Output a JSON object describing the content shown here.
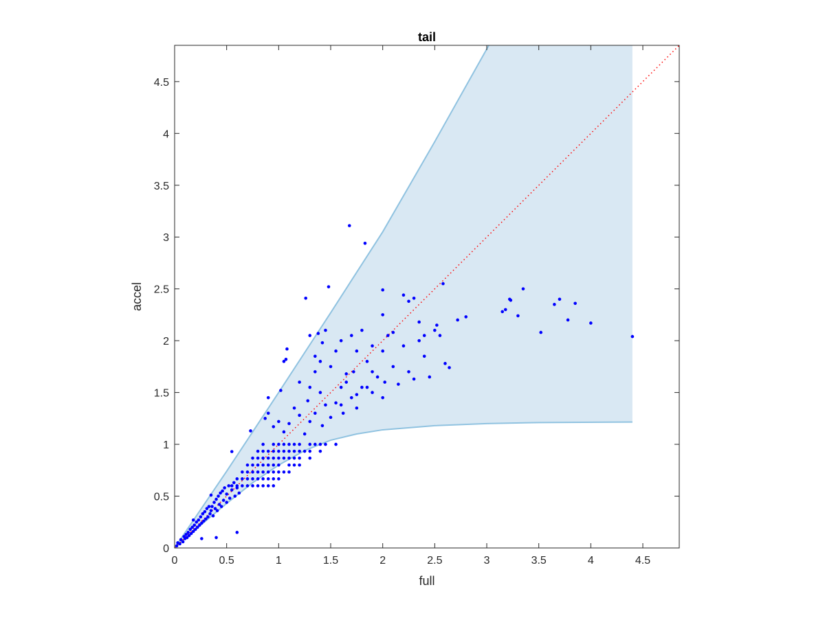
{
  "chart_data": {
    "type": "scatter",
    "title": "tail",
    "xlabel": "full",
    "ylabel": "accel",
    "xlim": [
      0,
      4.85
    ],
    "ylim": [
      0,
      4.85
    ],
    "xticks": [
      "0",
      "0.5",
      "1",
      "1.5",
      "2",
      "2.5",
      "3",
      "3.5",
      "4",
      "4.5"
    ],
    "yticks": [
      "0",
      "0.5",
      "1",
      "1.5",
      "2",
      "2.5",
      "3",
      "3.5",
      "4",
      "4.5"
    ],
    "grid": false,
    "colors": {
      "points": "#0000ff",
      "band_fill": "#d9e8f3",
      "band_edge": "#8fc2e0",
      "reference": "#ff0000"
    },
    "reference_line": {
      "style": "dotted",
      "x": [
        0,
        4.85
      ],
      "y": [
        0,
        4.85
      ]
    },
    "band": {
      "upper": [
        [
          0,
          0
        ],
        [
          0.5,
          0.74
        ],
        [
          1,
          1.5
        ],
        [
          1.5,
          2.27
        ],
        [
          2,
          3.05
        ],
        [
          2.5,
          3.92
        ],
        [
          3.02,
          4.85
        ]
      ],
      "lower": [
        [
          0,
          0
        ],
        [
          0.25,
          0.22
        ],
        [
          0.5,
          0.43
        ],
        [
          0.75,
          0.63
        ],
        [
          1,
          0.8
        ],
        [
          1.25,
          0.94
        ],
        [
          1.5,
          1.04
        ],
        [
          1.75,
          1.1
        ],
        [
          2,
          1.14
        ],
        [
          2.5,
          1.18
        ],
        [
          3,
          1.2
        ],
        [
          3.5,
          1.21
        ],
        [
          4.4,
          1.215
        ]
      ],
      "x_end": 4.4
    },
    "points": [
      [
        0.02,
        0.02
      ],
      [
        0.03,
        0.05
      ],
      [
        0.05,
        0.04
      ],
      [
        0.06,
        0.08
      ],
      [
        0.08,
        0.06
      ],
      [
        0.09,
        0.11
      ],
      [
        0.1,
        0.09
      ],
      [
        0.11,
        0.13
      ],
      [
        0.12,
        0.1
      ],
      [
        0.13,
        0.15
      ],
      [
        0.14,
        0.12
      ],
      [
        0.15,
        0.18
      ],
      [
        0.16,
        0.14
      ],
      [
        0.17,
        0.2
      ],
      [
        0.18,
        0.16
      ],
      [
        0.19,
        0.22
      ],
      [
        0.2,
        0.18
      ],
      [
        0.21,
        0.25
      ],
      [
        0.22,
        0.2
      ],
      [
        0.23,
        0.27
      ],
      [
        0.24,
        0.22
      ],
      [
        0.25,
        0.3
      ],
      [
        0.26,
        0.24
      ],
      [
        0.27,
        0.33
      ],
      [
        0.28,
        0.26
      ],
      [
        0.29,
        0.35
      ],
      [
        0.3,
        0.28
      ],
      [
        0.31,
        0.38
      ],
      [
        0.32,
        0.3
      ],
      [
        0.33,
        0.4
      ],
      [
        0.34,
        0.33
      ],
      [
        0.35,
        0.36
      ],
      [
        0.36,
        0.4
      ],
      [
        0.37,
        0.31
      ],
      [
        0.38,
        0.44
      ],
      [
        0.39,
        0.38
      ],
      [
        0.4,
        0.47
      ],
      [
        0.41,
        0.36
      ],
      [
        0.42,
        0.5
      ],
      [
        0.43,
        0.42
      ],
      [
        0.44,
        0.53
      ],
      [
        0.45,
        0.4
      ],
      [
        0.46,
        0.55
      ],
      [
        0.47,
        0.46
      ],
      [
        0.48,
        0.58
      ],
      [
        0.5,
        0.44
      ],
      [
        0.5,
        0.52
      ],
      [
        0.52,
        0.6
      ],
      [
        0.53,
        0.48
      ],
      [
        0.55,
        0.56
      ],
      [
        0.57,
        0.63
      ],
      [
        0.58,
        0.5
      ],
      [
        0.6,
        0.58
      ],
      [
        0.62,
        0.53
      ],
      [
        0.4,
        0.1
      ],
      [
        0.26,
        0.09
      ],
      [
        0.18,
        0.27
      ],
      [
        0.35,
        0.51
      ],
      [
        0.6,
        0.15
      ],
      [
        0.55,
        0.6
      ],
      [
        0.6,
        0.6
      ],
      [
        0.65,
        0.6
      ],
      [
        0.7,
        0.6
      ],
      [
        0.75,
        0.6
      ],
      [
        0.8,
        0.6
      ],
      [
        0.85,
        0.6
      ],
      [
        0.9,
        0.6
      ],
      [
        0.95,
        0.6
      ],
      [
        0.6,
        0.667
      ],
      [
        0.65,
        0.667
      ],
      [
        0.7,
        0.667
      ],
      [
        0.75,
        0.667
      ],
      [
        0.8,
        0.667
      ],
      [
        0.85,
        0.667
      ],
      [
        0.9,
        0.667
      ],
      [
        0.95,
        0.667
      ],
      [
        1.0,
        0.667
      ],
      [
        0.65,
        0.733
      ],
      [
        0.7,
        0.733
      ],
      [
        0.75,
        0.733
      ],
      [
        0.8,
        0.733
      ],
      [
        0.85,
        0.733
      ],
      [
        0.9,
        0.733
      ],
      [
        0.95,
        0.733
      ],
      [
        1.0,
        0.733
      ],
      [
        1.05,
        0.733
      ],
      [
        1.1,
        0.733
      ],
      [
        0.7,
        0.8
      ],
      [
        0.75,
        0.8
      ],
      [
        0.8,
        0.8
      ],
      [
        0.85,
        0.8
      ],
      [
        0.9,
        0.8
      ],
      [
        0.95,
        0.8
      ],
      [
        1.0,
        0.8
      ],
      [
        1.1,
        0.8
      ],
      [
        1.15,
        0.8
      ],
      [
        1.2,
        0.8
      ],
      [
        0.75,
        0.867
      ],
      [
        0.8,
        0.867
      ],
      [
        0.85,
        0.867
      ],
      [
        0.9,
        0.867
      ],
      [
        0.95,
        0.867
      ],
      [
        1.0,
        0.867
      ],
      [
        1.05,
        0.867
      ],
      [
        1.1,
        0.867
      ],
      [
        1.15,
        0.867
      ],
      [
        1.2,
        0.867
      ],
      [
        1.3,
        0.867
      ],
      [
        0.8,
        0.933
      ],
      [
        0.85,
        0.933
      ],
      [
        0.9,
        0.933
      ],
      [
        0.95,
        0.933
      ],
      [
        1.0,
        0.933
      ],
      [
        1.05,
        0.933
      ],
      [
        1.1,
        0.933
      ],
      [
        1.15,
        0.933
      ],
      [
        1.2,
        0.933
      ],
      [
        1.25,
        0.933
      ],
      [
        1.3,
        0.933
      ],
      [
        1.4,
        0.933
      ],
      [
        0.85,
        1.0
      ],
      [
        0.95,
        1.0
      ],
      [
        1.0,
        1.0
      ],
      [
        1.05,
        1.0
      ],
      [
        1.1,
        1.0
      ],
      [
        1.15,
        1.0
      ],
      [
        1.2,
        1.0
      ],
      [
        1.3,
        1.0
      ],
      [
        1.35,
        1.0
      ],
      [
        1.4,
        1.0
      ],
      [
        1.45,
        1.0
      ],
      [
        1.55,
        1.0
      ],
      [
        0.55,
        0.93
      ],
      [
        0.73,
        1.13
      ],
      [
        0.87,
        1.25
      ],
      [
        0.9,
        1.3
      ],
      [
        0.95,
        1.17
      ],
      [
        1.0,
        1.22
      ],
      [
        1.05,
        1.12
      ],
      [
        1.1,
        1.2
      ],
      [
        1.15,
        1.35
      ],
      [
        1.2,
        1.28
      ],
      [
        1.25,
        1.1
      ],
      [
        1.28,
        1.42
      ],
      [
        1.3,
        1.22
      ],
      [
        1.35,
        1.3
      ],
      [
        1.4,
        1.5
      ],
      [
        1.42,
        1.18
      ],
      [
        1.45,
        1.38
      ],
      [
        1.5,
        1.26
      ],
      [
        1.55,
        1.4
      ],
      [
        1.6,
        1.55
      ],
      [
        1.62,
        1.3
      ],
      [
        1.65,
        1.6
      ],
      [
        1.7,
        1.45
      ],
      [
        1.72,
        1.7
      ],
      [
        1.75,
        1.35
      ],
      [
        1.8,
        1.55
      ],
      [
        1.85,
        1.8
      ],
      [
        1.9,
        1.5
      ],
      [
        1.95,
        1.65
      ],
      [
        2.0,
        1.9
      ],
      [
        2.02,
        1.6
      ],
      [
        2.05,
        2.05
      ],
      [
        2.1,
        1.75
      ],
      [
        2.15,
        1.58
      ],
      [
        2.2,
        1.95
      ],
      [
        2.25,
        1.7
      ],
      [
        2.3,
        1.63
      ],
      [
        2.35,
        2.0
      ],
      [
        2.4,
        1.85
      ],
      [
        2.45,
        1.65
      ],
      [
        2.5,
        2.1
      ],
      [
        2.52,
        2.15
      ],
      [
        2.55,
        2.05
      ],
      [
        1.3,
        1.55
      ],
      [
        1.35,
        1.7
      ],
      [
        1.4,
        1.8
      ],
      [
        1.5,
        1.75
      ],
      [
        1.55,
        1.9
      ],
      [
        1.6,
        2.0
      ],
      [
        1.65,
        1.68
      ],
      [
        1.7,
        2.05
      ],
      [
        1.75,
        1.9
      ],
      [
        1.8,
        2.1
      ],
      [
        1.9,
        1.95
      ],
      [
        2.0,
        2.25
      ],
      [
        2.1,
        2.08
      ],
      [
        2.2,
        2.44
      ],
      [
        2.25,
        2.38
      ],
      [
        2.3,
        2.41
      ],
      [
        2.35,
        2.18
      ],
      [
        2.4,
        2.05
      ],
      [
        2.0,
        1.45
      ],
      [
        1.85,
        1.55
      ],
      [
        1.75,
        1.48
      ],
      [
        1.6,
        1.38
      ],
      [
        1.9,
        1.7
      ],
      [
        1.05,
        1.8
      ],
      [
        1.07,
        1.82
      ],
      [
        1.08,
        1.92
      ],
      [
        1.2,
        1.6
      ],
      [
        1.3,
        2.05
      ],
      [
        1.35,
        1.85
      ],
      [
        1.38,
        2.07
      ],
      [
        1.42,
        1.98
      ],
      [
        1.45,
        2.1
      ],
      [
        1.02,
        1.52
      ],
      [
        0.9,
        1.45
      ],
      [
        1.26,
        2.41
      ],
      [
        1.48,
        2.52
      ],
      [
        1.68,
        3.11
      ],
      [
        1.83,
        2.94
      ],
      [
        2.0,
        2.49
      ],
      [
        2.58,
        2.55
      ],
      [
        2.6,
        1.78
      ],
      [
        2.64,
        1.74
      ],
      [
        2.72,
        2.2
      ],
      [
        2.8,
        2.23
      ],
      [
        3.15,
        2.28
      ],
      [
        3.18,
        2.3
      ],
      [
        3.22,
        2.4
      ],
      [
        3.23,
        2.39
      ],
      [
        3.3,
        2.24
      ],
      [
        3.35,
        2.5
      ],
      [
        3.52,
        2.08
      ],
      [
        3.65,
        2.35
      ],
      [
        3.7,
        2.4
      ],
      [
        3.78,
        2.2
      ],
      [
        3.85,
        2.36
      ],
      [
        4.0,
        2.17
      ],
      [
        4.4,
        2.04
      ]
    ]
  }
}
